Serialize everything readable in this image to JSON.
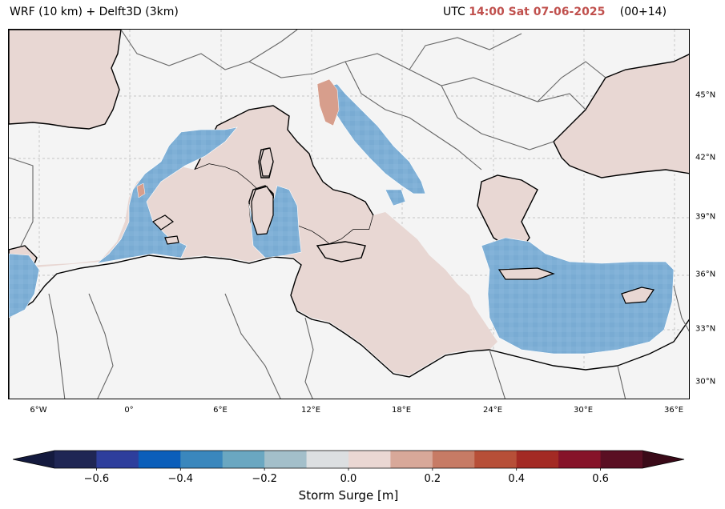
{
  "header": {
    "model": "WRF (10 km) + Delft3D (3km)",
    "utc_prefix": "UTC",
    "timestamp": "14:00 Sat 07-06-2025",
    "lead": "(00+14)"
  },
  "map": {
    "lon_ticks": [
      "6°W",
      "0°",
      "6°E",
      "12°E",
      "18°E",
      "24°E",
      "30°E",
      "36°E"
    ],
    "lat_ticks": [
      "45°N",
      "42°N",
      "39°N",
      "36°N",
      "33°N",
      "30°N"
    ],
    "colors": {
      "land": "#e8d7d3",
      "background": "#f4f4f4",
      "surge_negative": "#7fb0d6",
      "surge_positive": "#d79e8c",
      "coast": "#000000",
      "borders": "#666666"
    }
  },
  "colorbar": {
    "label": "Storm Surge [m]",
    "ticks": [
      "−0.6",
      "−0.4",
      "−0.2",
      "0.0",
      "0.2",
      "0.4",
      "0.6"
    ],
    "tick_values": [
      -0.6,
      -0.4,
      -0.2,
      0.0,
      0.2,
      0.4,
      0.6
    ],
    "min": -0.7,
    "max": 0.7,
    "colors": [
      "#1f2654",
      "#2e3e9c",
      "#0b5eba",
      "#3a87bd",
      "#6aa7c1",
      "#a3bfca",
      "#dcdfe1",
      "#ead7d3",
      "#d8a899",
      "#c77b65",
      "#b74f38",
      "#a32a24",
      "#861329",
      "#5a0f23"
    ],
    "under_color": "#141a3e",
    "over_color": "#3a0a18"
  }
}
